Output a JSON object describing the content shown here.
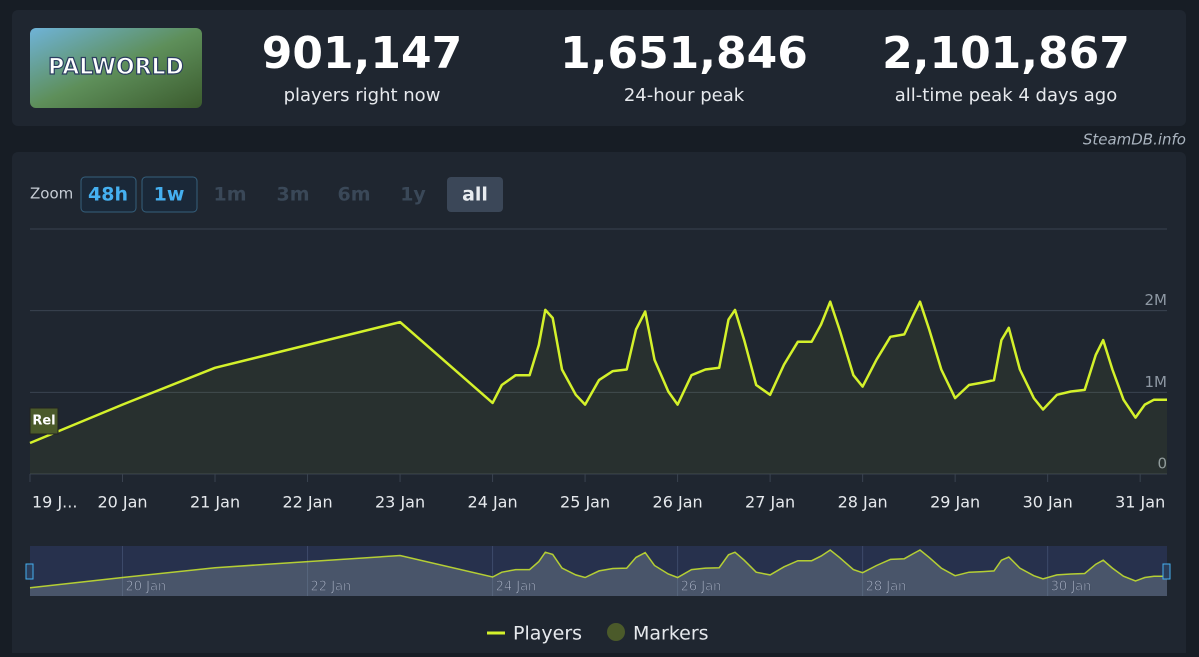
{
  "header": {
    "game_logo_text": "PALWORLD",
    "stats": [
      {
        "value": "901,147",
        "label": "players right now"
      },
      {
        "value": "1,651,846",
        "label": "24-hour peak"
      },
      {
        "value": "2,101,867",
        "label": "all-time peak 4 days ago"
      }
    ]
  },
  "source": "SteamDB.info",
  "zoom": {
    "label": "Zoom",
    "buttons": [
      {
        "label": "48h",
        "state": "enabled"
      },
      {
        "label": "1w",
        "state": "enabled"
      },
      {
        "label": "1m",
        "state": "disabled"
      },
      {
        "label": "3m",
        "state": "disabled"
      },
      {
        "label": "6m",
        "state": "disabled"
      },
      {
        "label": "1y",
        "state": "disabled"
      },
      {
        "label": "all",
        "state": "selected"
      }
    ]
  },
  "chart_data": {
    "type": "line",
    "x": [
      19,
      20,
      21,
      23,
      24,
      24.1,
      24.25,
      24.4,
      24.5,
      24.57,
      24.65,
      24.75,
      24.9,
      25,
      25.15,
      25.3,
      25.45,
      25.55,
      25.65,
      25.75,
      25.9,
      26,
      26.15,
      26.3,
      26.45,
      26.55,
      26.62,
      26.72,
      26.85,
      27,
      27.15,
      27.3,
      27.45,
      27.55,
      27.65,
      27.75,
      27.9,
      28,
      28.15,
      28.3,
      28.45,
      28.55,
      28.62,
      28.72,
      28.85,
      29,
      29.15,
      29.3,
      29.42,
      29.5,
      29.58,
      29.7,
      29.85,
      29.95,
      30.1,
      30.25,
      30.4,
      30.52,
      30.6,
      30.7,
      30.82,
      30.95,
      31.05,
      31.15,
      31.29
    ],
    "series": [
      {
        "name": "Players",
        "color": "#d4f12b",
        "values": [
          380000,
          850000,
          1300000,
          1860000,
          870000,
          1090000,
          1210000,
          1210000,
          1580000,
          2010000,
          1910000,
          1280000,
          970000,
          850000,
          1150000,
          1260000,
          1280000,
          1770000,
          1990000,
          1400000,
          1010000,
          850000,
          1210000,
          1280000,
          1300000,
          1890000,
          2010000,
          1640000,
          1090000,
          970000,
          1340000,
          1620000,
          1620000,
          1830000,
          2110000,
          1770000,
          1210000,
          1070000,
          1400000,
          1680000,
          1710000,
          1950000,
          2110000,
          1770000,
          1280000,
          930000,
          1090000,
          1120000,
          1150000,
          1640000,
          1790000,
          1280000,
          930000,
          790000,
          970000,
          1010000,
          1030000,
          1460000,
          1640000,
          1280000,
          910000,
          690000,
          850000,
          910000,
          910000
        ]
      }
    ],
    "markers": {
      "name": "Markers",
      "color": "#4b5a2a",
      "items": [
        {
          "x": 19,
          "label": "Rel"
        }
      ]
    },
    "xlim": [
      19,
      31.29
    ],
    "xticks": [
      {
        "value": 19,
        "label": "19 J..."
      },
      {
        "value": 20,
        "label": "20 Jan"
      },
      {
        "value": 21,
        "label": "21 Jan"
      },
      {
        "value": 22,
        "label": "22 Jan"
      },
      {
        "value": 23,
        "label": "23 Jan"
      },
      {
        "value": 24,
        "label": "24 Jan"
      },
      {
        "value": 25,
        "label": "25 Jan"
      },
      {
        "value": 26,
        "label": "26 Jan"
      },
      {
        "value": 27,
        "label": "27 Jan"
      },
      {
        "value": 28,
        "label": "28 Jan"
      },
      {
        "value": 29,
        "label": "29 Jan"
      },
      {
        "value": 30,
        "label": "30 Jan"
      },
      {
        "value": 31,
        "label": "31 Jan"
      }
    ],
    "ylim": [
      0,
      3000000
    ],
    "yticks": [
      0,
      {
        "value": 1000000,
        "label": "1M"
      },
      {
        "value": 2000000,
        "label": "2M"
      }
    ],
    "navigator_xticks": [
      {
        "value": 20,
        "label": "20 Jan"
      },
      {
        "value": 22,
        "label": "22 Jan"
      },
      {
        "value": 24,
        "label": "24 Jan"
      },
      {
        "value": 26,
        "label": "26 Jan"
      },
      {
        "value": 28,
        "label": "28 Jan"
      },
      {
        "value": 30,
        "label": "30 Jan"
      }
    ],
    "grid": true
  }
}
